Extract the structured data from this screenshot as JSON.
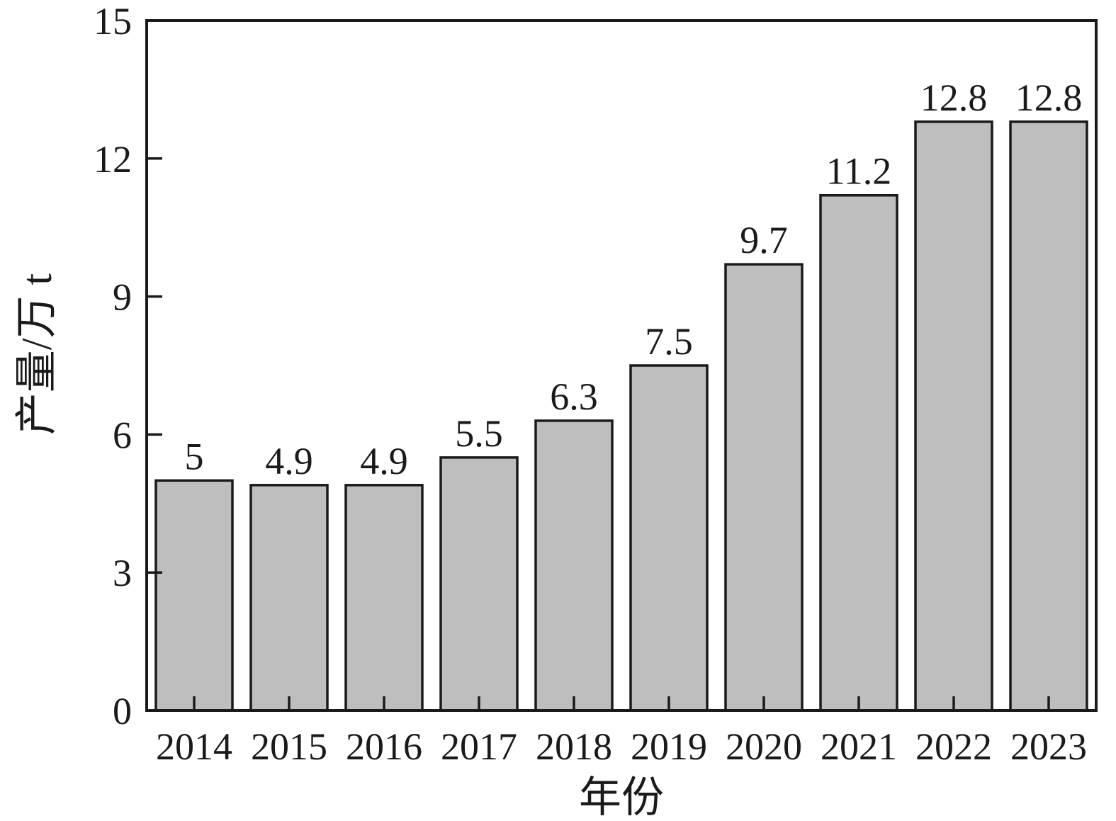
{
  "chart_data": {
    "type": "bar",
    "title": "",
    "categories": [
      "2014",
      "2015",
      "2016",
      "2017",
      "2018",
      "2019",
      "2020",
      "2021",
      "2022",
      "2023"
    ],
    "values": [
      5,
      4.9,
      4.9,
      5.5,
      6.3,
      7.5,
      9.7,
      11.2,
      12.8,
      12.8
    ],
    "value_labels": [
      "5",
      "4.9",
      "4.9",
      "5.5",
      "6.3",
      "7.5",
      "9.7",
      "11.2",
      "12.8",
      "12.8"
    ],
    "xlabel": "年份",
    "ylabel": "产量/万 t",
    "ylim": [
      0,
      15
    ],
    "yticks": [
      0,
      3,
      6,
      9,
      12,
      15
    ],
    "ytick_labels": [
      "0",
      "3",
      "6",
      "9",
      "12",
      "15"
    ],
    "grid": false,
    "legend": "none",
    "frame": "full-box",
    "tick_direction": "in",
    "colors": {
      "bar_fill": "#bebebe",
      "bar_stroke": "#1a1a1a",
      "axis": "#1a1a1a",
      "text": "#1a1a1a",
      "background": "#ffffff"
    }
  }
}
